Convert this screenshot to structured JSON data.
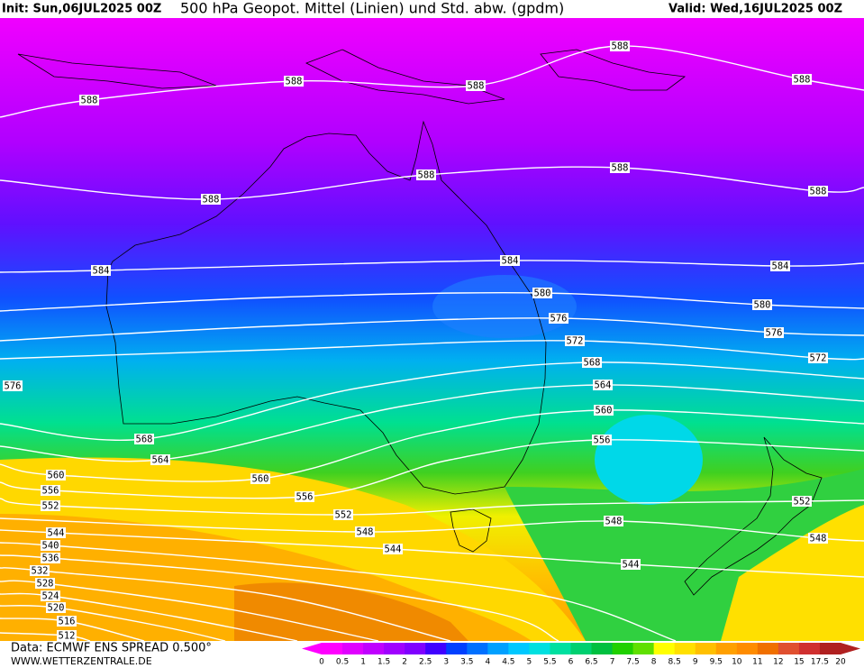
{
  "header": {
    "init": "Init: Sun,06JUL2025 00Z",
    "title": "500 hPa Geopot. Mittel (Linien) und Std. abw. (gpdm)",
    "valid": "Valid: Wed,16JUL2025 00Z"
  },
  "isolines": [
    588,
    588,
    584,
    580,
    576,
    572,
    568,
    564,
    560,
    556,
    552,
    548,
    544,
    540,
    536,
    532,
    528,
    524,
    520,
    516,
    512
  ],
  "legend": {
    "labels": [
      0,
      0.5,
      1,
      1.5,
      2,
      2.5,
      3,
      3.5,
      4,
      4.5,
      5,
      5.5,
      6,
      6.5,
      7,
      7.5,
      8,
      8.5,
      9,
      9.5,
      10,
      11,
      12,
      15,
      17.5,
      20
    ],
    "colors": [
      "#ff00ff",
      "#e000ff",
      "#c000ff",
      "#a000ff",
      "#8000ff",
      "#4000ff",
      "#0040ff",
      "#0070ff",
      "#00a0ff",
      "#00c8ff",
      "#00e0e0",
      "#00e0a0",
      "#00d070",
      "#00c040",
      "#20d000",
      "#60e000",
      "#ffff00",
      "#ffe000",
      "#ffc000",
      "#ffa000",
      "#ff8c00",
      "#f07000",
      "#e05030",
      "#d03030",
      "#b02020"
    ]
  },
  "footer": {
    "data": "Data: ECMWF ENS SPREAD 0.500°",
    "site": "WWW.WETTERZENTRALE.DE"
  }
}
